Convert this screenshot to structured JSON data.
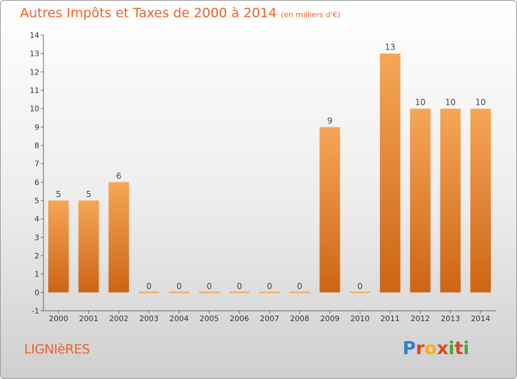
{
  "title": "Autres Impôts et Taxes de 2000 à 2014",
  "subtitle": "(en milliers d'€)",
  "town": "LIGNIèRES",
  "brand": {
    "text": "Proxiti",
    "letters": [
      "P",
      "r",
      "o",
      "x",
      "i",
      "t",
      "i"
    ],
    "letter_colors": [
      "#2f7fd2",
      "#e2461f",
      "#f2b01e",
      "#e2461f",
      "#3fa83f",
      "#e2461f",
      "#3fa83f"
    ]
  },
  "colors": {
    "bar_top": "#f6a657",
    "bar_bottom": "#cc6515",
    "accent": "#e9632a"
  },
  "chart_data": {
    "type": "bar",
    "title": "Autres Impôts et Taxes de 2000 à 2014",
    "subtitle": "(en milliers d'€)",
    "categories": [
      "2000",
      "2001",
      "2002",
      "2003",
      "2004",
      "2005",
      "2006",
      "2007",
      "2008",
      "2009",
      "2010",
      "2011",
      "2012",
      "2013",
      "2014"
    ],
    "values": [
      5,
      5,
      6,
      0,
      0,
      0,
      0,
      0,
      0,
      9,
      0,
      13,
      10,
      10,
      10
    ],
    "data_labels": [
      "5",
      "5",
      "6",
      "0",
      "0",
      "0",
      "0",
      "0",
      "0",
      "9",
      "0",
      "13",
      "10",
      "10",
      "10"
    ],
    "ylim": [
      -1,
      14
    ],
    "y_ticks": [
      "-1",
      "0",
      "1",
      "2",
      "3",
      "4",
      "5",
      "6",
      "7",
      "8",
      "9",
      "10",
      "11",
      "12",
      "13",
      "14"
    ],
    "grid": false,
    "legend": "none"
  }
}
